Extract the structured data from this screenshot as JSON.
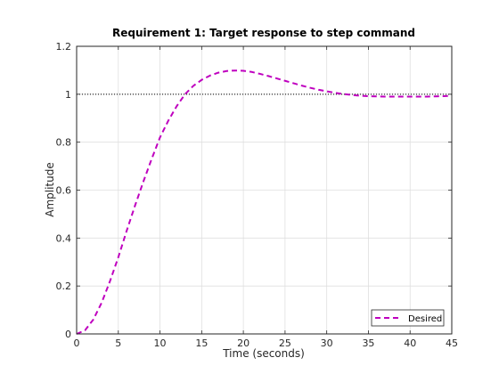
{
  "chart_data": {
    "type": "line",
    "title": "Requirement 1: Target response to step command",
    "xlabel": "Time (seconds)",
    "ylabel": "Amplitude",
    "xlim": [
      0,
      45
    ],
    "ylim": [
      0,
      1.2
    ],
    "x_ticks": [
      0,
      5,
      10,
      15,
      20,
      25,
      30,
      35,
      40,
      45
    ],
    "y_ticks": [
      0,
      0.2,
      0.4,
      0.6,
      0.8,
      1,
      1.2
    ],
    "x_tick_labels": [
      "0",
      "5",
      "10",
      "15",
      "20",
      "25",
      "30",
      "35",
      "40",
      "45"
    ],
    "y_tick_labels": [
      "0",
      "0.2",
      "0.4",
      "0.6",
      "0.8",
      "1",
      "1.2"
    ],
    "grid": true,
    "legend_position": "bottom-right",
    "reference_line": {
      "y": 1,
      "style": "dotted",
      "color": "#000000"
    },
    "series": [
      {
        "name": "Desired",
        "color": "#bf00bf",
        "style": "dashed",
        "x": [
          0,
          1,
          2,
          3,
          4,
          5,
          6,
          7,
          8,
          9,
          10,
          11,
          12,
          13,
          14,
          15,
          16,
          17,
          18,
          19,
          20,
          21,
          22,
          23,
          24,
          25,
          26,
          27,
          28,
          29,
          30,
          31,
          32,
          33,
          34,
          35,
          36,
          37,
          38,
          39,
          40,
          41,
          42,
          43,
          44,
          45
        ],
        "y": [
          0,
          0.015,
          0.06,
          0.13,
          0.22,
          0.32,
          0.43,
          0.535,
          0.635,
          0.73,
          0.82,
          0.89,
          0.95,
          1.0,
          1.035,
          1.06,
          1.078,
          1.09,
          1.097,
          1.099,
          1.098,
          1.093,
          1.085,
          1.076,
          1.066,
          1.056,
          1.046,
          1.036,
          1.027,
          1.019,
          1.012,
          1.006,
          1.001,
          0.997,
          0.994,
          0.992,
          0.991,
          0.99,
          0.99,
          0.99,
          0.99,
          0.99,
          0.99,
          0.991,
          0.992,
          0.994
        ]
      }
    ]
  }
}
